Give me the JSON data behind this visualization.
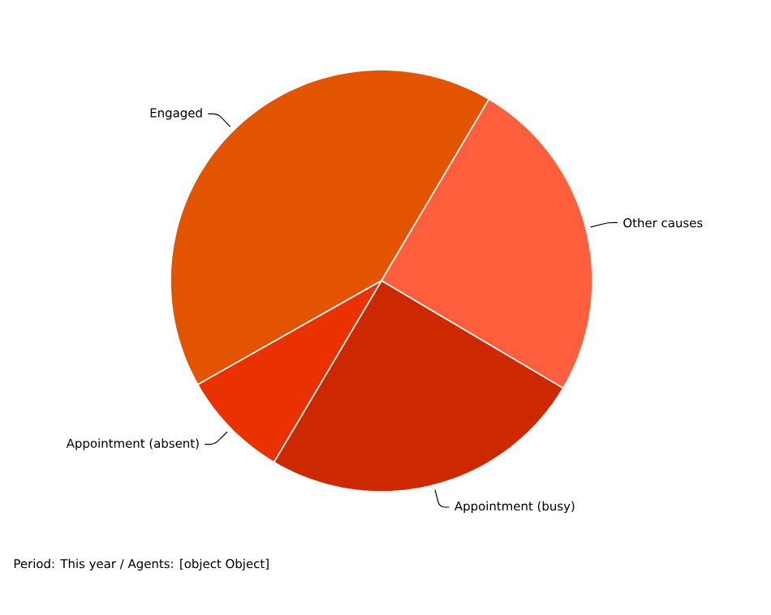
{
  "chart_data": {
    "type": "pie",
    "categories": [
      "Engaged",
      "Other causes",
      "Appointment (busy)",
      "Appointment (absent)"
    ],
    "values": [
      41.7,
      25,
      25,
      8.3
    ],
    "colors": [
      "#e35400",
      "#ff5f3c",
      "#cc2900",
      "#ea3200"
    ],
    "annotations": [
      "Period: This year / Agents: [object Object]"
    ]
  }
}
